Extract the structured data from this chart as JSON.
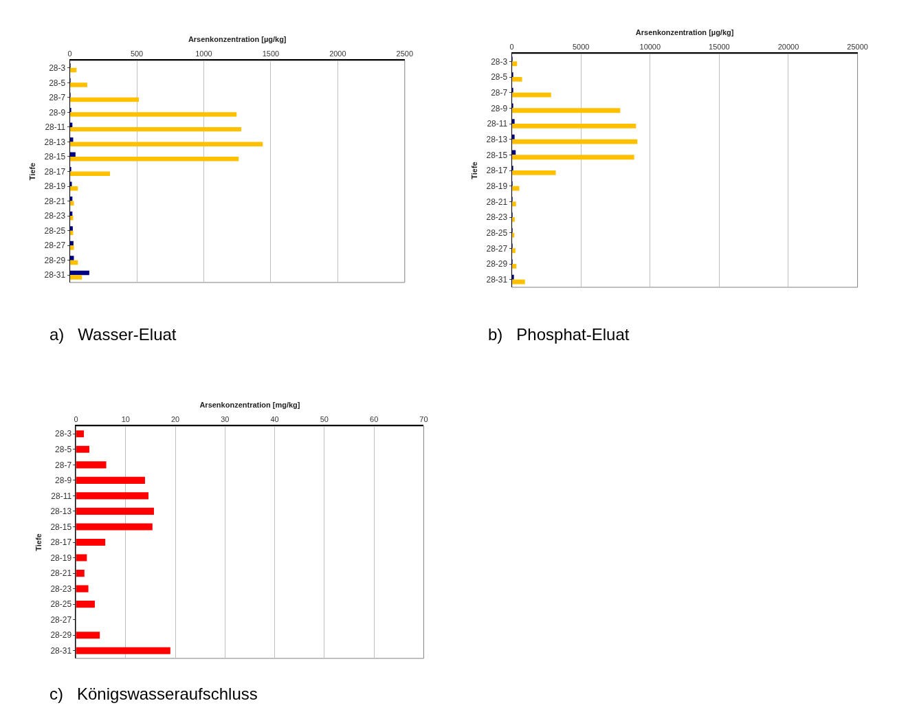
{
  "chart_data": [
    {
      "type": "bar",
      "orientation": "horizontal",
      "xlabel": "Arsenkonzentration [µg/kg]",
      "ylabel": "Tiefe",
      "categories": [
        "28-3",
        "28-5",
        "28-7",
        "28-9",
        "28-11",
        "28-13",
        "28-15",
        "28-17",
        "28-19",
        "28-21",
        "28-23",
        "28-25",
        "28-27",
        "28-29",
        "28-31"
      ],
      "series": [
        {
          "color": "#000080",
          "values": [
            2,
            5,
            3,
            7,
            19,
            25,
            42,
            10,
            15,
            19,
            19,
            22,
            27,
            30,
            145
          ]
        },
        {
          "color": "#ffc000",
          "values": [
            50,
            130,
            515,
            1245,
            1280,
            1440,
            1260,
            300,
            60,
            30,
            25,
            25,
            30,
            60,
            90
          ]
        }
      ],
      "xlim": [
        0,
        2500
      ],
      "xticks": [
        0,
        500,
        1000,
        1500,
        2000,
        2500
      ],
      "grid": "x",
      "annotations": [
        "a)   Wasser-Eluat"
      ]
    },
    {
      "type": "bar",
      "orientation": "horizontal",
      "xlabel": "Arsenkonzentration [µg/kg]",
      "ylabel": "Tiefe",
      "categories": [
        "28-3",
        "28-5",
        "28-7",
        "28-9",
        "28-11",
        "28-13",
        "28-15",
        "28-17",
        "28-19",
        "28-21",
        "28-23",
        "28-25",
        "28-27",
        "28-29",
        "28-31"
      ],
      "series": [
        {
          "color": "#000080",
          "values": [
            20,
            50,
            100,
            80,
            200,
            200,
            280,
            70,
            30,
            30,
            20,
            30,
            30,
            30,
            150
          ]
        },
        {
          "color": "#ffc000",
          "values": [
            380,
            740,
            2840,
            7840,
            8980,
            9080,
            8850,
            3180,
            540,
            300,
            210,
            180,
            260,
            330,
            950
          ]
        }
      ],
      "xlim": [
        0,
        25000
      ],
      "xticks": [
        0,
        5000,
        10000,
        15000,
        20000,
        25000
      ],
      "grid": "x",
      "annotations": [
        "b)   Phosphat-Eluat"
      ]
    },
    {
      "type": "bar",
      "orientation": "horizontal",
      "xlabel": "Arsenkonzentration [mg/kg]",
      "ylabel": "Tiefe",
      "categories": [
        "28-3",
        "28-5",
        "28-7",
        "28-9",
        "28-11",
        "28-13",
        "28-15",
        "28-17",
        "28-19",
        "28-21",
        "28-23",
        "28-25",
        "28-27",
        "28-29",
        "28-31"
      ],
      "series": [
        {
          "color": "#ff0000",
          "values": [
            1.6,
            2.7,
            6.1,
            13.9,
            14.6,
            15.7,
            15.4,
            5.9,
            2.2,
            1.7,
            2.5,
            3.8,
            null,
            4.8,
            19.0
          ]
        }
      ],
      "xlim": [
        0,
        70
      ],
      "xticks": [
        0,
        10,
        20,
        30,
        40,
        50,
        60,
        70
      ],
      "grid": "x",
      "annotations": [
        "c)   Königswasseraufschluss"
      ]
    }
  ]
}
